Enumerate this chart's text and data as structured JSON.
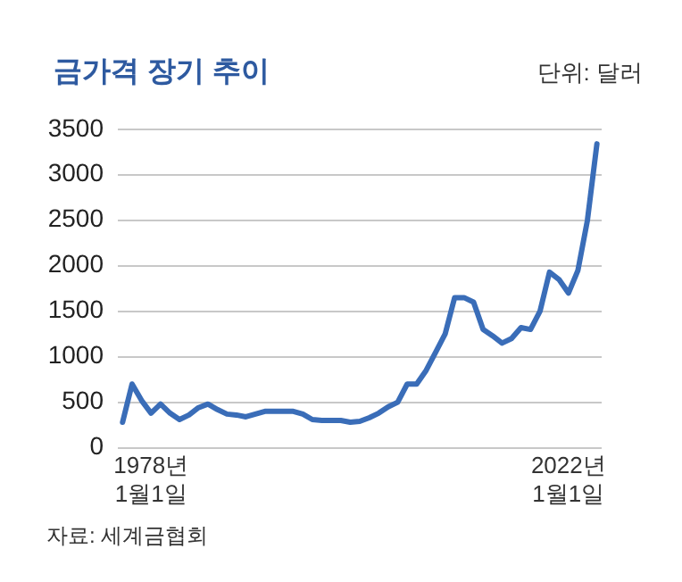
{
  "chart_data": {
    "type": "line",
    "title": "금가격 장기 추이",
    "ylabel": "단위: 달러",
    "annotations": [
      "자료: 세계금협회"
    ],
    "categories": [
      null,
      null,
      null,
      "1978년\n1월1일",
      null,
      null,
      null,
      null,
      null,
      null,
      null,
      null,
      null,
      null,
      null,
      null,
      null,
      null,
      null,
      null,
      null,
      null,
      null,
      null,
      null,
      null,
      null,
      null,
      null,
      null,
      null,
      null,
      null,
      null,
      null,
      null,
      null,
      null,
      null,
      null,
      null,
      null,
      null,
      null,
      null,
      null,
      null,
      "2022년\n1월1일",
      null,
      null,
      null
    ],
    "series": [
      {
        "color": "#3a6db8",
        "values": [
          280,
          700,
          520,
          380,
          480,
          380,
          310,
          360,
          440,
          480,
          420,
          370,
          360,
          340,
          370,
          400,
          400,
          400,
          400,
          370,
          310,
          300,
          300,
          300,
          280,
          290,
          330,
          380,
          450,
          500,
          700,
          700,
          850,
          1050,
          1250,
          1650,
          1650,
          1600,
          1300,
          1230,
          1150,
          1200,
          1320,
          1300,
          1500,
          1930,
          1850,
          1700,
          1950,
          2500,
          3340
        ]
      }
    ],
    "ylim": [
      0,
      3500
    ],
    "yticks": [
      0,
      500,
      1000,
      1500,
      2000,
      2500,
      3000,
      3500
    ],
    "grid": "y",
    "line_style": "solid",
    "marker": "none"
  }
}
